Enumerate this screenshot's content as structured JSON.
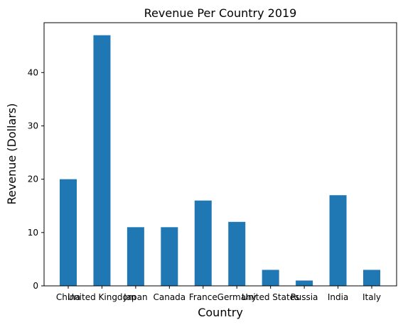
{
  "chart_data": {
    "type": "bar",
    "title": "Revenue Per Country 2019",
    "xlabel": "Country",
    "ylabel": "Revenue (Dollars)",
    "categories": [
      "China",
      "United Kingdom",
      "Japan",
      "Canada",
      "France",
      "Germany",
      "United States",
      "Russia",
      "India",
      "Italy"
    ],
    "values": [
      20,
      47,
      11,
      11,
      16,
      12,
      3,
      1,
      17,
      3
    ],
    "ylim": [
      0,
      49.35
    ],
    "yticks": [
      0,
      10,
      20,
      30,
      40
    ],
    "grid": false,
    "legend": "none",
    "bar_color": "#1f77b4"
  }
}
